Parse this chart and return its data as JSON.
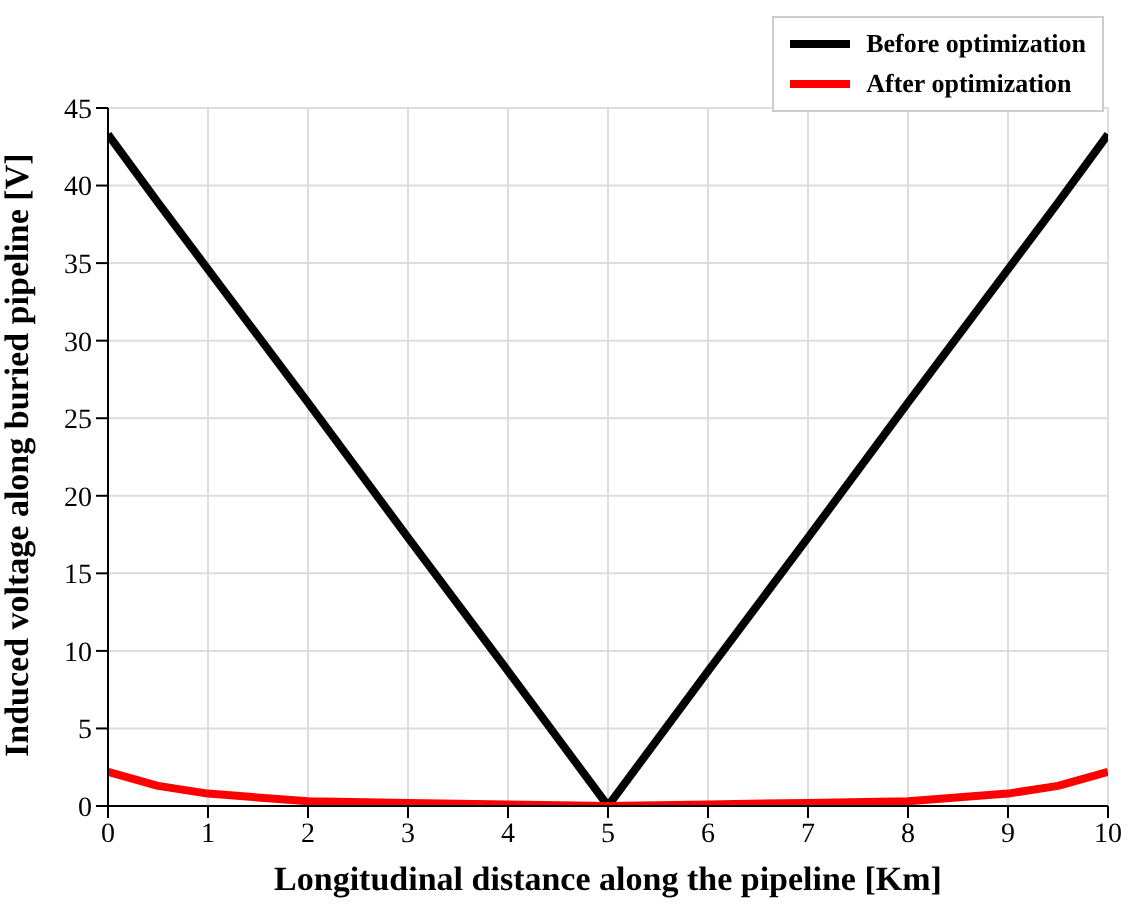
{
  "chart_data": {
    "type": "line",
    "xlabel": "Longitudinal distance along the pipeline [Km]",
    "ylabel": "Induced voltage along buried pipeline [V]",
    "x": [
      0,
      0.5,
      1,
      2,
      3,
      4,
      5,
      6,
      7,
      8,
      9,
      9.5,
      10
    ],
    "series": [
      {
        "name": "Before optimization",
        "color": "#000000",
        "values": [
          43.3,
          38.9,
          34.6,
          26.0,
          17.3,
          8.7,
          0,
          8.7,
          17.3,
          26.0,
          34.6,
          38.9,
          43.3
        ]
      },
      {
        "name": "After optimization",
        "color": "#ff0000",
        "values": [
          2.2,
          1.3,
          0.8,
          0.3,
          0.2,
          0.1,
          0,
          0.1,
          0.2,
          0.3,
          0.8,
          1.3,
          2.2
        ]
      }
    ],
    "xlim": [
      0,
      10
    ],
    "xticks": [
      0,
      1,
      2,
      3,
      4,
      5,
      6,
      7,
      8,
      9,
      10
    ],
    "ylim": [
      0,
      45
    ],
    "yticks": [
      0,
      5,
      10,
      15,
      20,
      25,
      30,
      35,
      40,
      45
    ],
    "grid": true,
    "legend": "top right",
    "marker": "none",
    "line_style": "solid"
  }
}
